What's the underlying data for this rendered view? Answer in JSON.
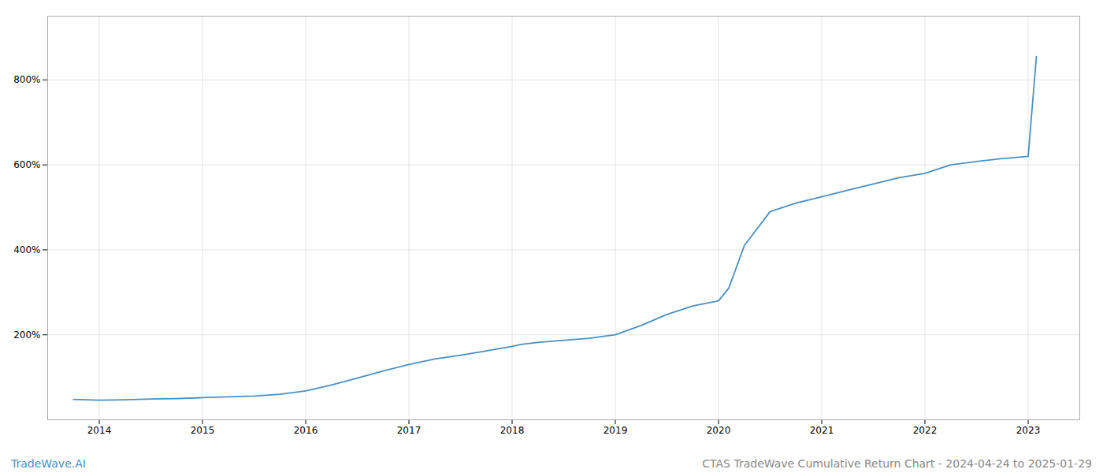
{
  "chart_data": {
    "type": "line",
    "title": "CTAS TradeWave Cumulative Return Chart - 2024-04-24 to 2025-01-29",
    "annotations": [
      "TradeWave.AI"
    ],
    "color": "#4a90c4",
    "grid": true,
    "x": [
      2013.75,
      2014.0,
      2014.25,
      2014.5,
      2014.75,
      2015.0,
      2015.25,
      2015.5,
      2015.75,
      2016.0,
      2016.25,
      2016.5,
      2016.75,
      2017.0,
      2017.25,
      2017.5,
      2017.75,
      2018.0,
      2018.1,
      2018.25,
      2018.5,
      2018.75,
      2019.0,
      2019.25,
      2019.5,
      2019.75,
      2020.0,
      2020.1,
      2020.25,
      2020.5,
      2020.75,
      2021.0,
      2021.25,
      2021.5,
      2021.75,
      2022.0,
      2022.25,
      2022.5,
      2022.75,
      2023.0,
      2023.08
    ],
    "values": [
      48,
      46,
      47,
      49,
      50,
      52,
      54,
      56,
      60,
      68,
      82,
      98,
      115,
      130,
      143,
      152,
      162,
      173,
      178,
      182,
      187,
      192,
      200,
      222,
      248,
      268,
      280,
      310,
      410,
      490,
      510,
      525,
      540,
      555,
      570,
      580,
      600,
      608,
      615,
      620,
      855
    ],
    "xlim": [
      2013.5,
      2023.5
    ],
    "xticks": [
      2014,
      2015,
      2016,
      2017,
      2018,
      2019,
      2020,
      2021,
      2022,
      2023
    ],
    "ylim": [
      0,
      950
    ],
    "yticks": [
      {
        "value": 200,
        "label": "200%"
      },
      {
        "value": 400,
        "label": "400%"
      },
      {
        "value": 600,
        "label": "600%"
      },
      {
        "value": 800,
        "label": "800%"
      }
    ]
  }
}
